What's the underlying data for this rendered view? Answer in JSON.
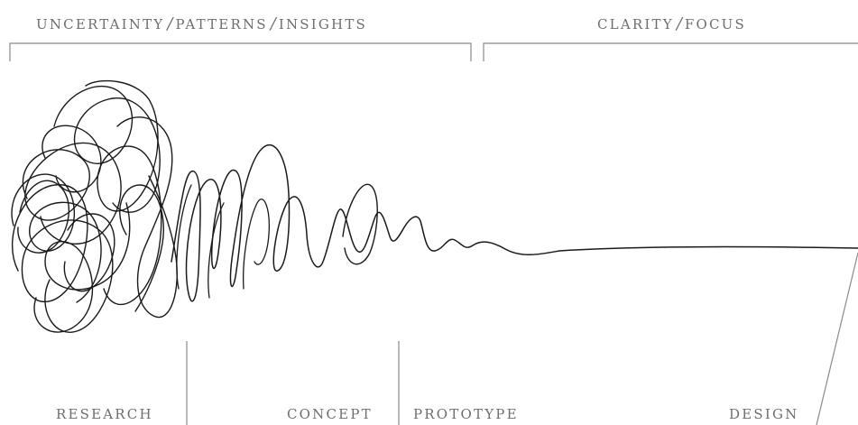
{
  "header": {
    "left": {
      "part1": "UNCERTAINTY",
      "part2": "PATTERNS",
      "part3": "INSIGHTS"
    },
    "right": {
      "part1": "CLARITY",
      "part2": "FOCUS"
    },
    "separator": "/"
  },
  "stages": {
    "research": "RESEARCH",
    "concept": "CONCEPT",
    "prototype": "PROTOTYPE",
    "design": "DESIGN"
  },
  "colors": {
    "line": "#1a1a1a",
    "text": "#6e6e6e",
    "bracket": "#8a8a8a"
  }
}
